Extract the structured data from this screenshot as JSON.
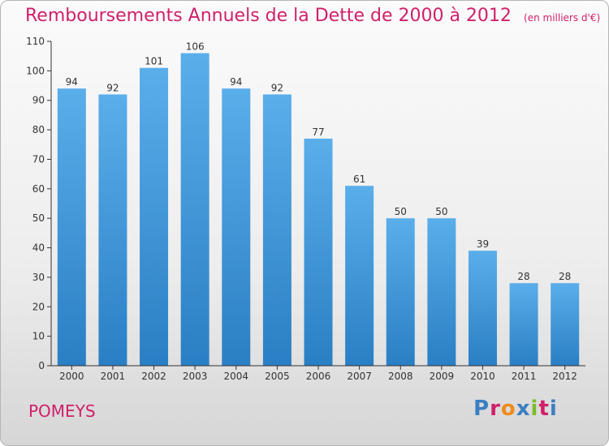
{
  "header": {
    "title": "Remboursements Annuels de la Dette de 2000 à 2012",
    "subtitle": "(en milliers d'€)"
  },
  "footer": {
    "place": "POMEYS",
    "brand": "Proxiti",
    "brand_colors": [
      "#3a7fc1",
      "#d0206a",
      "#f08a1c",
      "#3a7fc1",
      "#7dbb2a",
      "#d0206a",
      "#3a7fc1"
    ]
  },
  "colors": {
    "bar_top": "#5aaeea",
    "bar_bottom": "#2a7fc4",
    "title": "#d0206a",
    "axis": "#333333"
  },
  "chart_data": {
    "type": "bar",
    "title": "Remboursements Annuels de la Dette de 2000 à 2012",
    "subtitle": "(en milliers d'€)",
    "xlabel": "",
    "ylabel": "",
    "categories": [
      "2000",
      "2001",
      "2002",
      "2003",
      "2004",
      "2005",
      "2006",
      "2007",
      "2008",
      "2009",
      "2010",
      "2011",
      "2012"
    ],
    "values": [
      94,
      92,
      101,
      106,
      94,
      92,
      77,
      61,
      50,
      50,
      39,
      28,
      28
    ],
    "data_labels": [
      "94",
      "92",
      "101",
      "106",
      "94",
      "92",
      "77",
      "61",
      "50",
      "50",
      "39",
      "28",
      "28"
    ],
    "ylim": [
      0,
      110
    ],
    "yticks": [
      0,
      10,
      20,
      30,
      40,
      50,
      60,
      70,
      80,
      90,
      100,
      110
    ],
    "grid": false,
    "legend": "none"
  }
}
